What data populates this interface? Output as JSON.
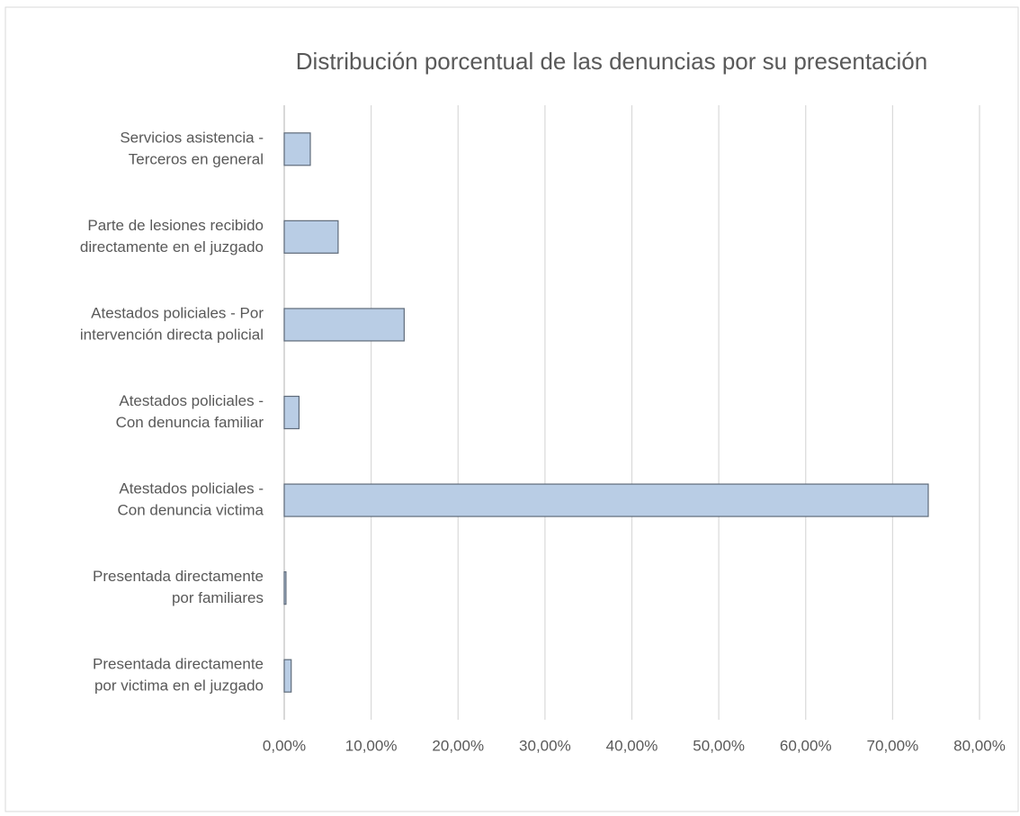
{
  "chart_data": {
    "type": "bar",
    "orientation": "horizontal",
    "title": "Distribución porcentual de las denuncias por su presentación",
    "categories": [
      [
        "Servicios asistencia -",
        "Terceros  en general"
      ],
      [
        "Parte de lesiones recibido",
        "directamente en el juzgado"
      ],
      [
        "Atestados policiales - Por",
        "intervención directa policial"
      ],
      [
        "Atestados policiales -",
        "Con denuncia familiar"
      ],
      [
        "Atestados policiales -",
        "Con denuncia victima"
      ],
      [
        "Presentada directamente",
        "por familiares"
      ],
      [
        "Presentada directamente",
        "por victima en el juzgado"
      ]
    ],
    "values": [
      3.0,
      6.2,
      13.8,
      1.7,
      74.1,
      0.2,
      0.8
    ],
    "color": "#b9cde5",
    "edge_color": "#5f6b7a",
    "xlim": [
      0,
      80
    ],
    "xticks": [
      {
        "value": 0,
        "label": "0,00%"
      },
      {
        "value": 10,
        "label": "10,00%"
      },
      {
        "value": 20,
        "label": "20,00%"
      },
      {
        "value": 30,
        "label": "30,00%"
      },
      {
        "value": 40,
        "label": "40,00%"
      },
      {
        "value": 50,
        "label": "50,00%"
      },
      {
        "value": 60,
        "label": "60,00%"
      },
      {
        "value": 70,
        "label": "70,00%"
      },
      {
        "value": 80,
        "label": "80,00%"
      }
    ],
    "grid": true
  }
}
